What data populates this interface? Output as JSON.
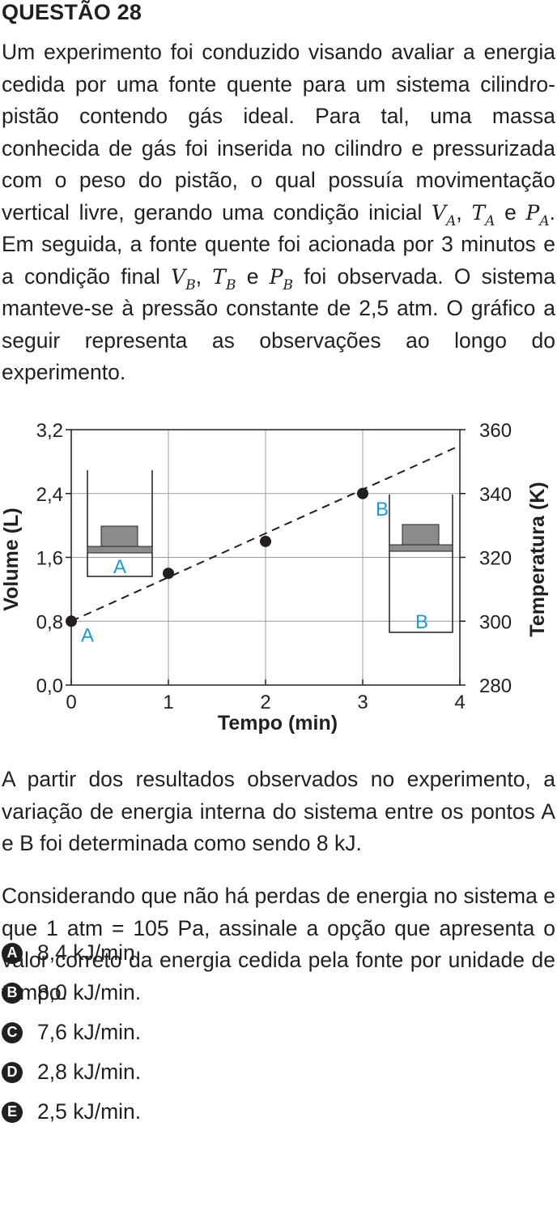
{
  "question": {
    "title": "QUESTÃO 28",
    "p1_a": "Um experimento foi conduzido visando avaliar a energia cedida por uma fonte quente para um sistema cilindro-pistão contendo gás ideal. Para tal, uma massa conhecida de gás foi inserida no cilindro e pressurizada com o peso do pistão, o qual possuía movimentação vertical livre, gerando uma condição inicial",
    "va": "V",
    "va_sub": "A",
    "sep1": ",",
    "ta": "T",
    "ta_sub": "A",
    "and1": "e",
    "pa": "P",
    "pa_sub": "A",
    "p1_b": ". Em seguida, a fonte quente foi acionada por 3 minutos e a condição final",
    "vb": "V",
    "vb_sub": "B",
    "sep2": ",",
    "tb": "T",
    "tb_sub": "B",
    "and2": "e",
    "pb": "P",
    "pb_sub": "B",
    "p1_c": "foi observada. O sistema manteve-se à pressão constante de 2,5 atm. O gráfico a seguir representa as observações ao longo do experimento.",
    "p2": "A partir dos resultados observados no experimento, a variação de energia interna do sistema entre os pontos A e B foi determinada como sendo 8 kJ.",
    "p3": "Considerando que não há perdas de energia no sistema e que 1 atm = 105 Pa, assinale a opção que apresenta o valor correto da energia cedida pela fonte por unidade de tempo."
  },
  "chart_data": {
    "type": "scatter",
    "title": "",
    "xlabel": "Tempo  (min)",
    "ylabel": "Volume (L)",
    "y2label": "Temperatura (K)",
    "xlim": [
      0,
      4
    ],
    "ylim": [
      0,
      3.2
    ],
    "y2lim": [
      280,
      360
    ],
    "x_ticks": [
      "0",
      "1",
      "2",
      "3",
      "4"
    ],
    "y_ticks": [
      "0,0",
      "0,8",
      "1,6",
      "2,4",
      "3,2"
    ],
    "y2_ticks": [
      "280",
      "300",
      "320",
      "340",
      "360"
    ],
    "grid": true,
    "points": [
      {
        "x": 0,
        "y": 0.8,
        "label": "A"
      },
      {
        "x": 1,
        "y": 1.4,
        "label": ""
      },
      {
        "x": 2,
        "y": 1.8,
        "label": ""
      },
      {
        "x": 3,
        "y": 2.4,
        "label": "B"
      }
    ],
    "trend_line": {
      "x": [
        0,
        4
      ],
      "y": [
        0.8,
        3.0
      ],
      "style": "dashed"
    },
    "cylinder_labels": [
      "A",
      "B"
    ],
    "colors": {
      "label": "#1a9ad6",
      "ink": "#231f20",
      "grid": "#9a9a9a",
      "piston": "#8c8c8c"
    }
  },
  "options": [
    {
      "letter": "A",
      "text": "8,4 kJ/min."
    },
    {
      "letter": "B",
      "text": "8,0 kJ/min."
    },
    {
      "letter": "C",
      "text": "7,6 kJ/min."
    },
    {
      "letter": "D",
      "text": "2,8 kJ/min."
    },
    {
      "letter": "E",
      "text": "2,5 kJ/min."
    }
  ]
}
